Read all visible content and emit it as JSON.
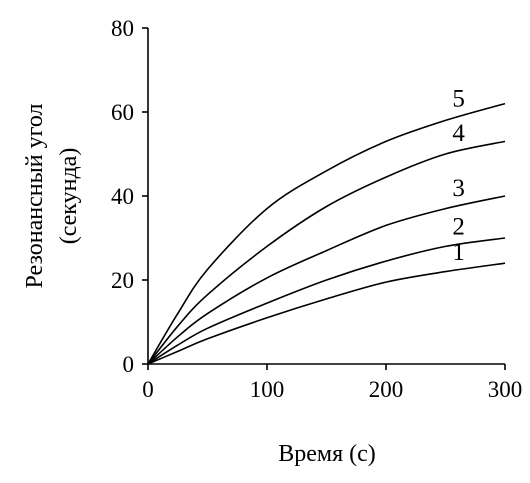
{
  "chart_data": {
    "type": "line",
    "title": "",
    "xlabel": "Время (с)",
    "ylabel_lines": [
      "Резонансный угол",
      "(секунда)"
    ],
    "xlim": [
      0,
      300
    ],
    "ylim": [
      0,
      80
    ],
    "x_ticks": [
      0,
      100,
      200,
      300
    ],
    "y_ticks": [
      0,
      20,
      40,
      60,
      80
    ],
    "grid": false,
    "legend": "none",
    "line_color": "#000000",
    "series": [
      {
        "label": "1",
        "x": [
          0,
          25,
          50,
          100,
          150,
          200,
          250,
          300
        ],
        "y": [
          0,
          3,
          6,
          11,
          15.5,
          19.5,
          22,
          24
        ]
      },
      {
        "label": "2",
        "x": [
          0,
          25,
          50,
          100,
          150,
          200,
          250,
          300
        ],
        "y": [
          0,
          4.5,
          8.5,
          14.5,
          20,
          24.5,
          28,
          30
        ]
      },
      {
        "label": "3",
        "x": [
          0,
          25,
          50,
          100,
          150,
          200,
          250,
          300
        ],
        "y": [
          0,
          6.5,
          12,
          20.5,
          27,
          33,
          37,
          40
        ]
      },
      {
        "label": "4",
        "x": [
          0,
          25,
          50,
          100,
          150,
          200,
          250,
          300
        ],
        "y": [
          0,
          9,
          16.5,
          28,
          37.5,
          44.5,
          50,
          53
        ]
      },
      {
        "label": "5",
        "x": [
          0,
          25,
          50,
          100,
          150,
          200,
          250,
          300
        ],
        "y": [
          0,
          12,
          22.5,
          37,
          46,
          53,
          58,
          62
        ]
      }
    ]
  }
}
